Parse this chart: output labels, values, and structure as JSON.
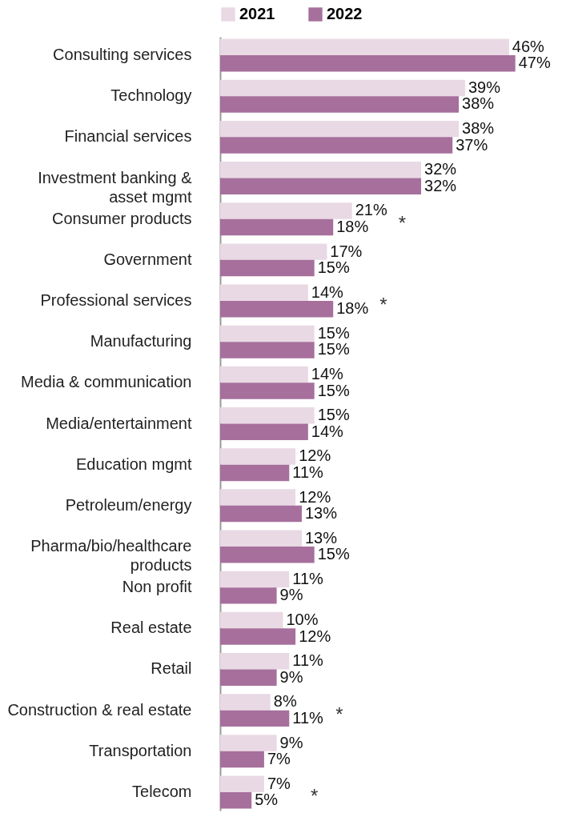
{
  "chart_data": {
    "type": "bar",
    "orientation": "horizontal",
    "legend": "top",
    "tick_labels": "y",
    "categories": [
      "Consulting services",
      "Technology",
      "Financial services",
      "Investment banking &\nasset mgmt",
      "Consumer products",
      "Government",
      "Professional services",
      "Manufacturing",
      "Media & communication",
      "Media/entertainment",
      "Education mgmt",
      "Petroleum/energy",
      "Pharma/bio/healthcare\nproducts",
      "Non profit",
      "Real estate",
      "Retail",
      "Construction & real estate",
      "Transportation",
      "Telecom"
    ],
    "series": [
      {
        "name": "2021",
        "color": "#e9d9e4",
        "values": [
          46,
          39,
          38,
          32,
          21,
          17,
          14,
          15,
          14,
          15,
          12,
          12,
          13,
          11,
          10,
          11,
          8,
          9,
          7
        ],
        "value_labels": [
          "46%",
          "39%",
          "38%",
          "32%",
          "21%",
          "17%",
          "14%",
          "15%",
          "14%",
          "15%",
          "12%",
          "12%",
          "13%",
          "11%",
          "10%",
          "11%",
          "8%",
          "9%",
          "7%"
        ]
      },
      {
        "name": "2022",
        "color": "#a66f9c",
        "values": [
          47,
          38,
          37,
          32,
          18,
          15,
          18,
          15,
          15,
          14,
          11,
          13,
          15,
          9,
          12,
          9,
          11,
          7,
          5
        ],
        "value_labels": [
          "47%",
          "38%",
          "37%",
          "32%",
          "18%",
          "15%",
          "18%",
          "15%",
          "15%",
          "14%",
          "11%",
          "13%",
          "15%",
          "9%",
          "12%",
          "9%",
          "11%",
          "7%",
          "5%"
        ]
      }
    ],
    "annotations": [
      {
        "text": "*",
        "x": 21,
        "y": "Consumer products"
      },
      {
        "text": "*",
        "x": 18,
        "y": "Professional services"
      },
      {
        "text": "*",
        "x": 11,
        "y": "Construction & real estate"
      },
      {
        "text": "*",
        "x": 7,
        "y": "Telecom"
      }
    ]
  }
}
